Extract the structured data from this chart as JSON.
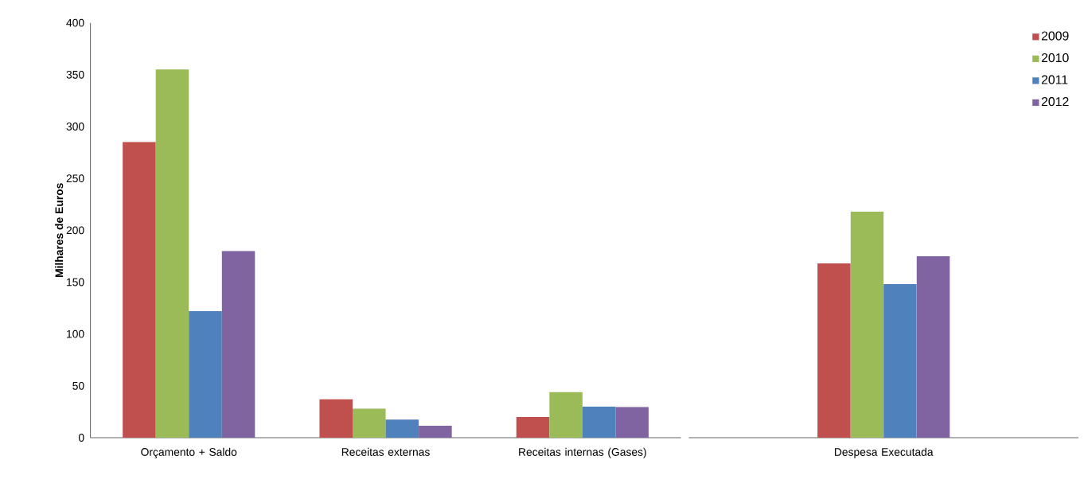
{
  "chart_data": {
    "type": "bar",
    "ylabel": "Milhares de Euros",
    "categories": [
      "Orçamento + Saldo",
      "Receitas externas",
      "Receitas internas (Gases)",
      "Despesa Executada"
    ],
    "ylim": [
      0,
      400
    ],
    "yticks": [
      0,
      50,
      100,
      150,
      200,
      250,
      300,
      350,
      400
    ],
    "legend": "top right",
    "series": [
      {
        "name": "2009",
        "color": "#c0504d",
        "values": [
          285,
          37,
          20,
          168
        ]
      },
      {
        "name": "2010",
        "color": "#9bbb59",
        "values": [
          355,
          28,
          44,
          218
        ]
      },
      {
        "name": "2011",
        "color": "#4f81bd",
        "values": [
          122,
          17.5,
          30,
          148
        ]
      },
      {
        "name": "2012",
        "color": "#8064a2",
        "values": [
          180,
          11.5,
          29.5,
          175
        ]
      }
    ]
  }
}
